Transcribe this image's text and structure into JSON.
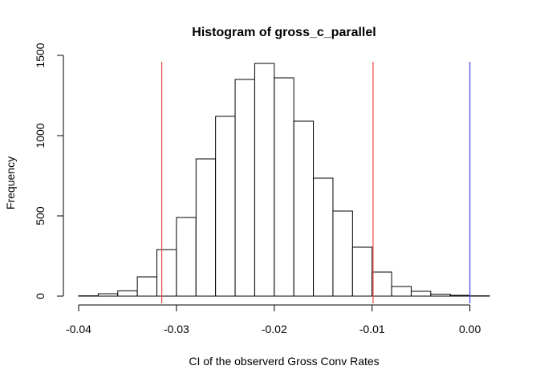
{
  "chart_data": {
    "type": "bar",
    "title": "Histogram of gross_c_parallel",
    "xlabel": "CI of the observerd Gross Conv Rates",
    "ylabel": "Frequency",
    "xlim": [
      -0.04,
      0.002
    ],
    "ylim": [
      0,
      1550
    ],
    "x_ticks": [
      -0.04,
      -0.03,
      -0.02,
      -0.01,
      0.0
    ],
    "x_tick_labels": [
      "-0.04",
      "-0.03",
      "-0.02",
      "-0.01",
      "0.00"
    ],
    "y_ticks": [
      0,
      500,
      1000,
      1500
    ],
    "y_tick_labels": [
      "0",
      "500",
      "1000",
      "1500"
    ],
    "bin_width": 0.002,
    "bin_edges": [
      -0.04,
      -0.038,
      -0.036,
      -0.034,
      -0.032,
      -0.03,
      -0.028,
      -0.026,
      -0.024,
      -0.022,
      -0.02,
      -0.018,
      -0.016,
      -0.014,
      -0.012,
      -0.01,
      -0.008,
      -0.006,
      -0.004,
      -0.002,
      0.0,
      0.002
    ],
    "values": [
      2,
      15,
      33,
      120,
      290,
      490,
      855,
      1120,
      1350,
      1450,
      1360,
      1090,
      735,
      530,
      305,
      150,
      60,
      30,
      12,
      5,
      2
    ],
    "vlines": [
      {
        "x": -0.0315,
        "color": "#e8534f"
      },
      {
        "x": -0.0099,
        "color": "#e8534f"
      },
      {
        "x": 0.0,
        "color": "#4a5de8"
      }
    ]
  }
}
